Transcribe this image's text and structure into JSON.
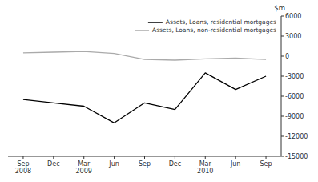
{
  "chart_data": {
    "type": "line",
    "categories": [
      "Sep\n2008",
      "Dec",
      "Mar\n2009",
      "Jun",
      "Sep",
      "Dec",
      "Mar\n2010",
      "Jun",
      "Sep"
    ],
    "series": [
      {
        "name": "Assets, Loans, residential mortgages",
        "color": "#000000",
        "values": [
          -6500,
          -7000,
          -7500,
          -10000,
          -7000,
          -8000,
          -2500,
          -5000,
          -3000
        ]
      },
      {
        "name": "Assets, Loans, non-residential mortgages",
        "color": "#aaaaaa",
        "values": [
          500,
          600,
          700,
          400,
          -500,
          -600,
          -400,
          -300,
          -500
        ]
      }
    ],
    "ylabel": "$m",
    "ylim": [
      -15000,
      6000
    ],
    "yticks": [
      -15000,
      -12000,
      -9000,
      -6000,
      -3000,
      0,
      3000,
      6000
    ],
    "grid": false,
    "legend": "upper-right"
  }
}
